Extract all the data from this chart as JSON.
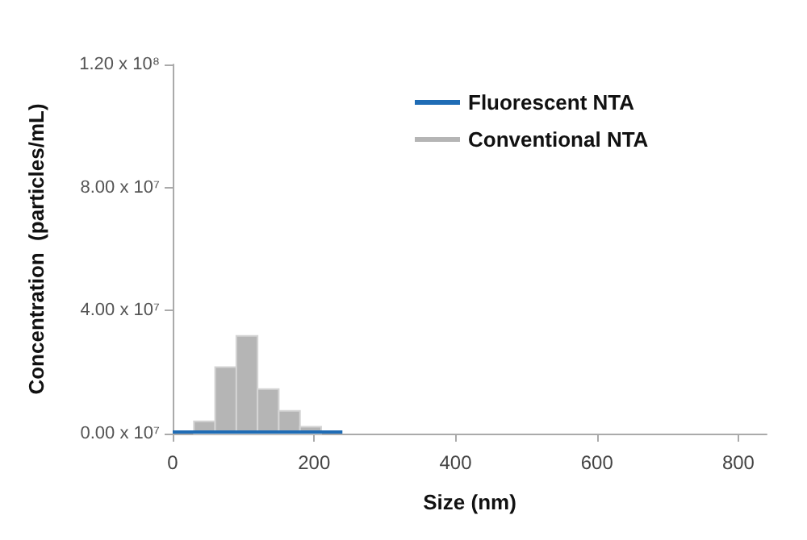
{
  "chart_data": {
    "type": "histogram",
    "xlabel": "Size (nm)",
    "ylabel": "Concentration  (particles/mL)",
    "xlim": [
      0,
      840
    ],
    "xticks": [
      0,
      200,
      400,
      600,
      800
    ],
    "ylim": [
      0,
      120000000
    ],
    "yticks": [
      {
        "value": 0,
        "label": "0.00 x 10⁷"
      },
      {
        "value": 40000000,
        "label": "4.00 x 10⁷"
      },
      {
        "value": 80000000,
        "label": "8.00 x 10⁷"
      },
      {
        "value": 120000000,
        "label": "1.20 x 10⁸"
      }
    ],
    "grid": false,
    "legend": "top right",
    "series": [
      {
        "name": "Fluorescent NTA",
        "type": "step",
        "color": "#1f6cb5",
        "x": [
          0,
          240
        ],
        "values": [
          500000,
          500000
        ]
      },
      {
        "name": "Conventional NTA",
        "color": "#b5b5b5",
        "bins": [
          30,
          60,
          90,
          120,
          150,
          180,
          210
        ],
        "values": [
          4000000,
          21600000,
          31800000,
          14500000,
          7400000,
          2200000
        ]
      }
    ]
  }
}
